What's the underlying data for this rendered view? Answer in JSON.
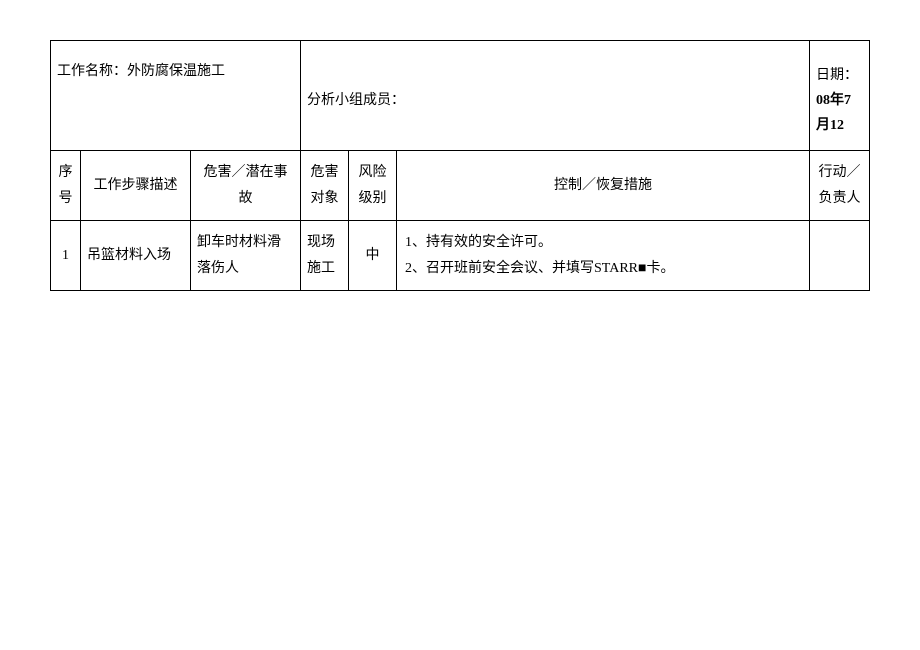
{
  "header": {
    "job_name_label": "工作名称：",
    "job_name_value": "外防腐保温施工",
    "team_label": "分析小组成员：",
    "date_label": "日期：",
    "date_value": "08年7月12"
  },
  "columns": {
    "seq": "序号",
    "step": "工作步骤描述",
    "hazard": "危害／潜在事故",
    "target": "危害对象",
    "risk": "风险级别",
    "measure": "控制／恢复措施",
    "action": "行动／负责人"
  },
  "rows": [
    {
      "seq": "1",
      "step": "吊篮材料入场",
      "hazard": "卸车时材料滑落伤人",
      "target": "现场施工",
      "risk": "中",
      "measures": "1、持有效的安全许可。\n2、召开班前安全会议、并填写STARR■卡。",
      "action": ""
    }
  ],
  "style": {
    "font_family": "SimSun",
    "font_size_pt": 14,
    "border_color": "#000000",
    "background_color": "#ffffff",
    "text_color": "#000000"
  }
}
